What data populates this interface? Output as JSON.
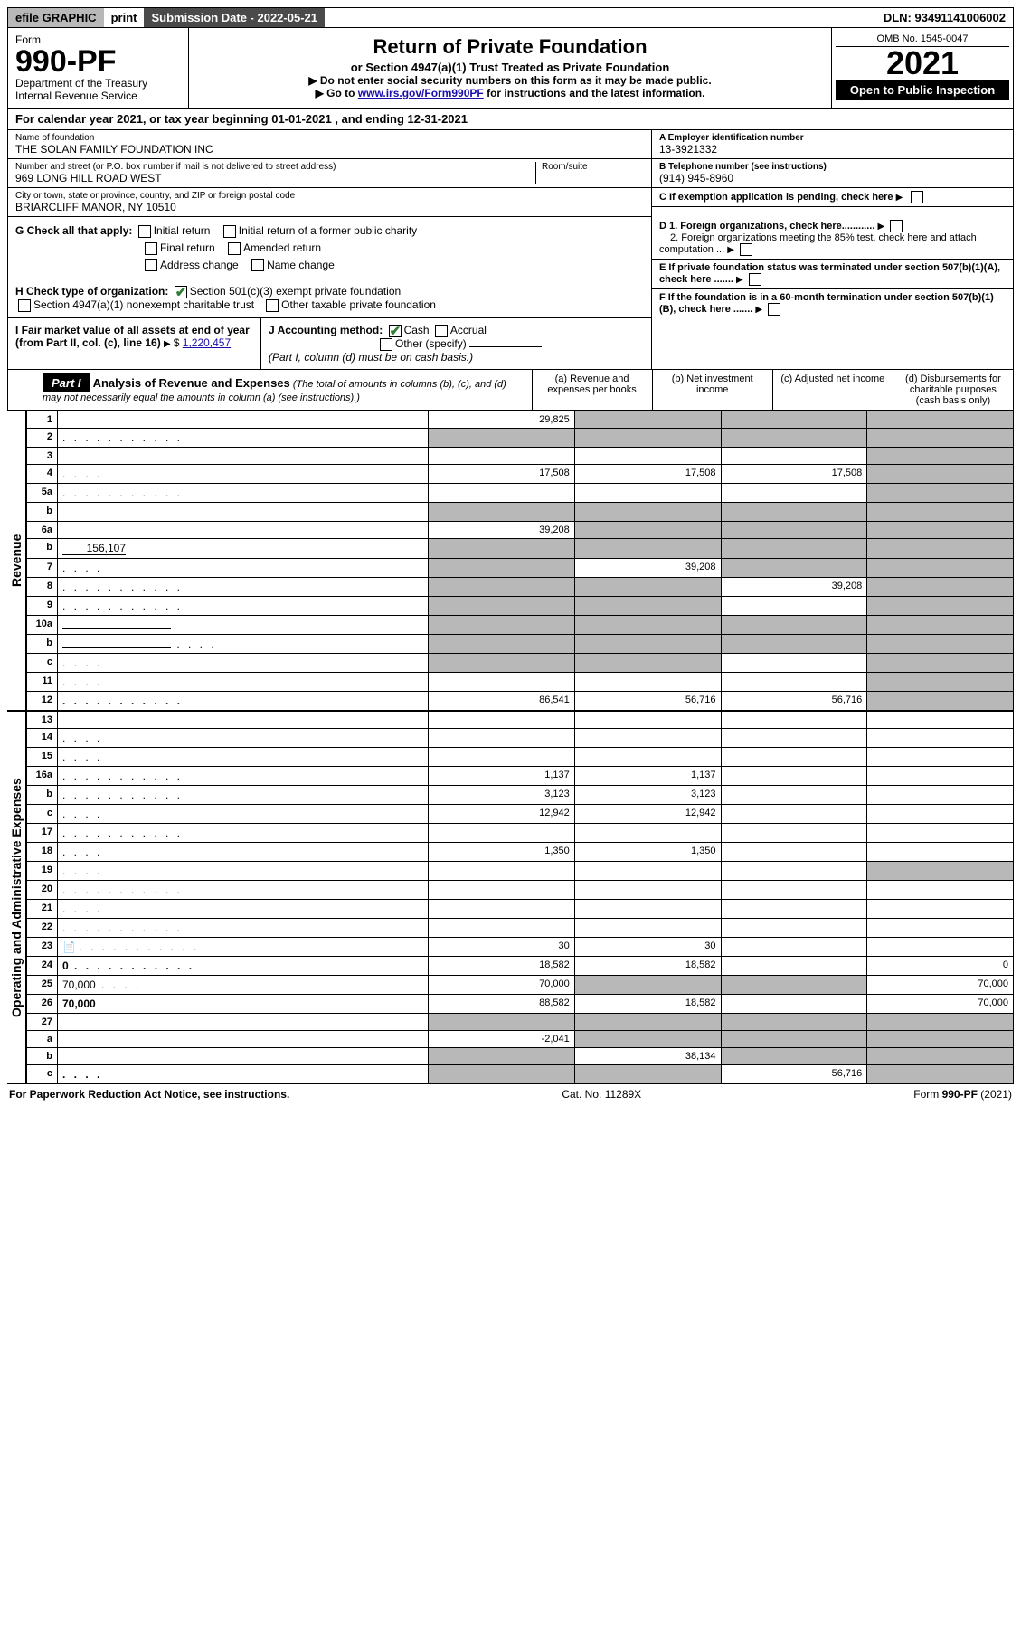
{
  "topbar": {
    "efile": "efile GRAPHIC",
    "print": "print",
    "submission_label": "Submission Date - 2022-05-21",
    "dln_label": "DLN: 93491141006002"
  },
  "header": {
    "form_label": "Form",
    "form_no": "990-PF",
    "dept": "Department of the Treasury",
    "irs": "Internal Revenue Service",
    "title": "Return of Private Foundation",
    "subtitle1": "or Section 4947(a)(1) Trust Treated as Private Foundation",
    "subtitle2": "▶ Do not enter social security numbers on this form as it may be made public.",
    "subtitle3_pre": "▶ Go to ",
    "subtitle3_link": "www.irs.gov/Form990PF",
    "subtitle3_post": " for instructions and the latest information.",
    "omb": "OMB No. 1545-0047",
    "year": "2021",
    "open_public": "Open to Public Inspection"
  },
  "calendar_year": "For calendar year 2021, or tax year beginning 01-01-2021              , and ending 12-31-2021",
  "entity": {
    "name_lbl": "Name of foundation",
    "name": "THE SOLAN FAMILY FOUNDATION INC",
    "addr_lbl": "Number and street (or P.O. box number if mail is not delivered to street address)",
    "addr": "969 LONG HILL ROAD WEST",
    "room_lbl": "Room/suite",
    "city_lbl": "City or town, state or province, country, and ZIP or foreign postal code",
    "city": "BRIARCLIFF MANOR, NY  10510",
    "ein_lbl": "A Employer identification number",
    "ein": "13-3921332",
    "phone_lbl": "B Telephone number (see instructions)",
    "phone": "(914) 945-8960",
    "c_lbl": "C If exemption application is pending, check here",
    "d1_lbl": "D 1. Foreign organizations, check here............",
    "d2_lbl": "2. Foreign organizations meeting the 85% test, check here and attach computation ...",
    "e_lbl": "E  If private foundation status was terminated under section 507(b)(1)(A), check here .......",
    "f_lbl": "F  If the foundation is in a 60-month termination under section 507(b)(1)(B), check here ......."
  },
  "g": {
    "label": "G Check all that apply:",
    "items": [
      "Initial return",
      "Initial return of a former public charity",
      "Final return",
      "Amended return",
      "Address change",
      "Name change"
    ]
  },
  "h": {
    "label": "H Check type of organization:",
    "opt1": "Section 501(c)(3) exempt private foundation",
    "opt2": "Section 4947(a)(1) nonexempt charitable trust",
    "opt3": "Other taxable private foundation"
  },
  "i": {
    "label": "I Fair market value of all assets at end of year (from Part II, col. (c), line 16)",
    "value": "1,220,457"
  },
  "j": {
    "label": "J Accounting method:",
    "cash": "Cash",
    "accrual": "Accrual",
    "other": "Other (specify)",
    "note": "(Part I, column (d) must be on cash basis.)"
  },
  "part1": {
    "label": "Part I",
    "title": "Analysis of Revenue and Expenses",
    "note": "(The total of amounts in columns (b), (c), and (d) may not necessarily equal the amounts in column (a) (see instructions).)",
    "col_a": "(a)   Revenue and expenses per books",
    "col_b": "(b)   Net investment income",
    "col_c": "(c)   Adjusted net income",
    "col_d": "(d)   Disbursements for charitable purposes (cash basis only)"
  },
  "side_revenue": "Revenue",
  "side_expenses": "Operating and Administrative Expenses",
  "rows": [
    {
      "n": "1",
      "d": "",
      "a": "29,825",
      "b": "",
      "c": "",
      "shade": [
        "b",
        "c",
        "d"
      ]
    },
    {
      "n": "2",
      "d": "",
      "a": "",
      "b": "",
      "c": "",
      "shade": [
        "a",
        "b",
        "c",
        "d"
      ],
      "checked": true,
      "dots": true
    },
    {
      "n": "3",
      "d": "",
      "a": "",
      "b": "",
      "c": "",
      "shade": [
        "d"
      ]
    },
    {
      "n": "4",
      "d": "",
      "a": "17,508",
      "b": "17,508",
      "c": "17,508",
      "shade": [
        "d"
      ],
      "dots": "short"
    },
    {
      "n": "5a",
      "d": "",
      "a": "",
      "b": "",
      "c": "",
      "shade": [
        "d"
      ],
      "dots": true
    },
    {
      "n": "b",
      "d": "",
      "a": "",
      "b": "",
      "c": "",
      "shade": [
        "a",
        "b",
        "c",
        "d"
      ],
      "under": true
    },
    {
      "n": "6a",
      "d": "",
      "a": "39,208",
      "b": "",
      "c": "",
      "shade": [
        "b",
        "c",
        "d"
      ]
    },
    {
      "n": "b",
      "d": "",
      "a": "",
      "b": "",
      "c": "",
      "shade": [
        "a",
        "b",
        "c",
        "d"
      ],
      "inline_val": "156,107"
    },
    {
      "n": "7",
      "d": "",
      "a": "",
      "b": "39,208",
      "c": "",
      "shade": [
        "a",
        "c",
        "d"
      ],
      "dots": "short"
    },
    {
      "n": "8",
      "d": "",
      "a": "",
      "b": "",
      "c": "39,208",
      "shade": [
        "a",
        "b",
        "d"
      ],
      "dots": true
    },
    {
      "n": "9",
      "d": "",
      "a": "",
      "b": "",
      "c": "",
      "shade": [
        "a",
        "b",
        "d"
      ],
      "dots": true
    },
    {
      "n": "10a",
      "d": "",
      "a": "",
      "b": "",
      "c": "",
      "shade": [
        "a",
        "b",
        "c",
        "d"
      ],
      "under": true
    },
    {
      "n": "b",
      "d": "",
      "a": "",
      "b": "",
      "c": "",
      "shade": [
        "a",
        "b",
        "c",
        "d"
      ],
      "dots": "short",
      "under": true
    },
    {
      "n": "c",
      "d": "",
      "a": "",
      "b": "",
      "c": "",
      "shade": [
        "a",
        "b",
        "d"
      ],
      "dots": "short"
    },
    {
      "n": "11",
      "d": "",
      "a": "",
      "b": "",
      "c": "",
      "shade": [
        "d"
      ],
      "dots": "short"
    },
    {
      "n": "12",
      "d": "",
      "a": "86,541",
      "b": "56,716",
      "c": "56,716",
      "shade": [
        "d"
      ],
      "bold": true,
      "dots": true
    }
  ],
  "exp_rows": [
    {
      "n": "13",
      "d": "",
      "a": "",
      "b": "",
      "c": ""
    },
    {
      "n": "14",
      "d": "",
      "a": "",
      "b": "",
      "c": "",
      "dots": "short"
    },
    {
      "n": "15",
      "d": "",
      "a": "",
      "b": "",
      "c": "",
      "dots": "short"
    },
    {
      "n": "16a",
      "d": "",
      "a": "1,137",
      "b": "1,137",
      "c": "",
      "dots": true
    },
    {
      "n": "b",
      "d": "",
      "a": "3,123",
      "b": "3,123",
      "c": "",
      "dots": true
    },
    {
      "n": "c",
      "d": "",
      "a": "12,942",
      "b": "12,942",
      "c": "",
      "dots": "short"
    },
    {
      "n": "17",
      "d": "",
      "a": "",
      "b": "",
      "c": "",
      "dots": true
    },
    {
      "n": "18",
      "d": "",
      "a": "1,350",
      "b": "1,350",
      "c": "",
      "dots": "short"
    },
    {
      "n": "19",
      "d": "",
      "a": "",
      "b": "",
      "c": "",
      "shade": [
        "d"
      ],
      "dots": "short"
    },
    {
      "n": "20",
      "d": "",
      "a": "",
      "b": "",
      "c": "",
      "dots": true
    },
    {
      "n": "21",
      "d": "",
      "a": "",
      "b": "",
      "c": "",
      "dots": "short"
    },
    {
      "n": "22",
      "d": "",
      "a": "",
      "b": "",
      "c": "",
      "dots": true
    },
    {
      "n": "23",
      "d": "",
      "a": "30",
      "b": "30",
      "c": "",
      "dots": true,
      "icon": true
    },
    {
      "n": "24",
      "d": "0",
      "a": "18,582",
      "b": "18,582",
      "c": "",
      "bold": true,
      "dots": true
    },
    {
      "n": "25",
      "d": "70,000",
      "a": "70,000",
      "b": "",
      "c": "",
      "shade": [
        "b",
        "c"
      ],
      "dots": "short"
    },
    {
      "n": "26",
      "d": "70,000",
      "a": "88,582",
      "b": "18,582",
      "c": "",
      "bold": true
    },
    {
      "n": "27",
      "d": "",
      "a": "",
      "b": "",
      "c": "",
      "shade": [
        "a",
        "b",
        "c",
        "d"
      ]
    },
    {
      "n": "a",
      "d": "",
      "a": "-2,041",
      "b": "",
      "c": "",
      "shade": [
        "b",
        "c",
        "d"
      ],
      "bold": true
    },
    {
      "n": "b",
      "d": "",
      "a": "",
      "b": "38,134",
      "c": "",
      "shade": [
        "a",
        "c",
        "d"
      ],
      "bold": true
    },
    {
      "n": "c",
      "d": "",
      "a": "",
      "b": "",
      "c": "56,716",
      "shade": [
        "a",
        "b",
        "d"
      ],
      "bold": true,
      "dots": "short"
    }
  ],
  "footer": {
    "left": "For Paperwork Reduction Act Notice, see instructions.",
    "mid": "Cat. No. 11289X",
    "right": "Form 990-PF (2021)"
  }
}
